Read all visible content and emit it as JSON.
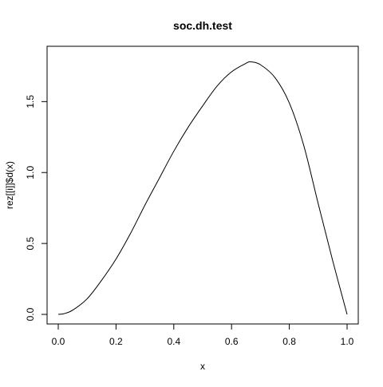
{
  "chart_data": {
    "type": "line",
    "title": "soc.dh.test",
    "xlabel": "x",
    "ylabel": "rez[[i]]$d(x)",
    "xlim": [
      0,
      1
    ],
    "ylim": [
      0,
      1.8
    ],
    "x_ticks": [
      "0.0",
      "0.2",
      "0.4",
      "0.6",
      "0.8",
      "1.0"
    ],
    "y_ticks": [
      "0.0",
      "0.5",
      "1.0",
      "1.5"
    ],
    "grid": false,
    "series": [
      {
        "x": [
          0.0,
          0.02,
          0.05,
          0.1,
          0.15,
          0.2,
          0.25,
          0.3,
          0.35,
          0.4,
          0.45,
          0.5,
          0.55,
          0.6,
          0.65,
          0.667,
          0.7,
          0.75,
          0.8,
          0.85,
          0.9,
          0.95,
          1.0
        ],
        "y": [
          0.0,
          0.005,
          0.03,
          0.11,
          0.24,
          0.39,
          0.57,
          0.77,
          0.96,
          1.15,
          1.32,
          1.47,
          1.61,
          1.71,
          1.77,
          1.78,
          1.76,
          1.67,
          1.49,
          1.19,
          0.78,
          0.38,
          0.0
        ]
      }
    ]
  }
}
